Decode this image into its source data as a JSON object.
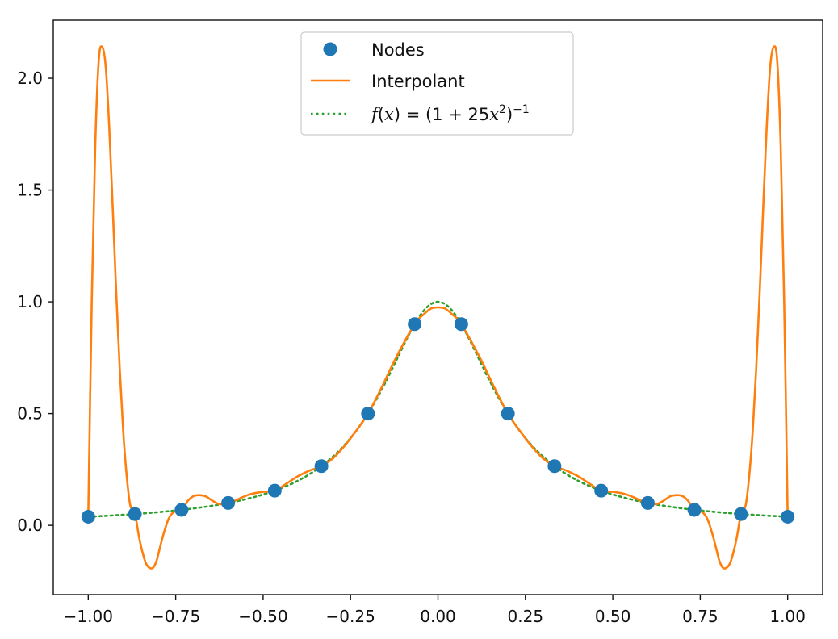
{
  "chart_data": {
    "type": "line",
    "title": "",
    "xlabel": "",
    "ylabel": "",
    "xlim": [
      -1.1,
      1.1
    ],
    "ylim": [
      -0.31,
      2.26
    ],
    "grid": false,
    "legend_position": "top-center",
    "x_ticks": [
      {
        "value": -1.0,
        "label": "−1.00"
      },
      {
        "value": -0.75,
        "label": "−0.75"
      },
      {
        "value": -0.5,
        "label": "−0.50"
      },
      {
        "value": -0.25,
        "label": "−0.25"
      },
      {
        "value": 0.0,
        "label": "0.00"
      },
      {
        "value": 0.25,
        "label": "0.25"
      },
      {
        "value": 0.5,
        "label": "0.50"
      },
      {
        "value": 0.75,
        "label": "0.75"
      },
      {
        "value": 1.0,
        "label": "1.00"
      }
    ],
    "y_ticks": [
      {
        "value": 0.0,
        "label": "0.0"
      },
      {
        "value": 0.5,
        "label": "0.5"
      },
      {
        "value": 1.0,
        "label": "1.0"
      },
      {
        "value": 1.5,
        "label": "1.5"
      },
      {
        "value": 2.0,
        "label": "2.0"
      }
    ],
    "series": [
      {
        "name": "Nodes",
        "kind": "scatter",
        "color": "#1f77b4",
        "x": [
          -1.0,
          -0.8667,
          -0.7333,
          -0.6,
          -0.4667,
          -0.3333,
          -0.2,
          -0.0667,
          0.0667,
          0.2,
          0.3333,
          0.4667,
          0.6,
          0.7333,
          0.8667,
          1.0
        ],
        "y": [
          0.0385,
          0.0506,
          0.0692,
          0.1,
          0.1552,
          0.2647,
          0.5,
          0.9,
          0.9,
          0.5,
          0.2647,
          0.1552,
          0.1,
          0.0692,
          0.0506,
          0.0385
        ]
      },
      {
        "name": "Interpolant",
        "kind": "line",
        "color": "#ff7f0e",
        "x": [
          -1.0,
          -0.99,
          -0.98,
          -0.97,
          -0.96,
          -0.95,
          -0.94,
          -0.93,
          -0.92,
          -0.91,
          -0.9,
          -0.89,
          -0.88,
          -0.8667,
          -0.855,
          -0.845,
          -0.835,
          -0.825,
          -0.815,
          -0.805,
          -0.795,
          -0.785,
          -0.77,
          -0.755,
          -0.7333,
          -0.715,
          -0.7,
          -0.685,
          -0.665,
          -0.645,
          -0.625,
          -0.6,
          -0.58,
          -0.56,
          -0.535,
          -0.5,
          -0.4667,
          -0.43,
          -0.4,
          -0.3667,
          -0.3333,
          -0.3,
          -0.27,
          -0.24,
          -0.2,
          -0.16,
          -0.12,
          -0.0667,
          -0.04,
          -0.02,
          0.0,
          0.02,
          0.04,
          0.0667,
          0.12,
          0.16,
          0.2,
          0.24,
          0.27,
          0.3,
          0.3333,
          0.3667,
          0.4,
          0.43,
          0.4667,
          0.5,
          0.535,
          0.56,
          0.58,
          0.6,
          0.625,
          0.645,
          0.665,
          0.685,
          0.7,
          0.715,
          0.7333,
          0.755,
          0.77,
          0.785,
          0.795,
          0.805,
          0.815,
          0.825,
          0.835,
          0.845,
          0.855,
          0.8667,
          0.88,
          0.89,
          0.9,
          0.91,
          0.92,
          0.93,
          0.94,
          0.95,
          0.96,
          0.97,
          0.98,
          0.99,
          1.0
        ],
        "y": [
          0.0385,
          1.0,
          1.7,
          2.08,
          2.14,
          2.05,
          1.78,
          1.42,
          1.04,
          0.7,
          0.42,
          0.22,
          0.09,
          0.0506,
          -0.05,
          -0.12,
          -0.17,
          -0.19,
          -0.19,
          -0.16,
          -0.1,
          -0.04,
          0.03,
          0.06,
          0.0692,
          0.11,
          0.13,
          0.135,
          0.13,
          0.11,
          0.095,
          0.1,
          0.11,
          0.125,
          0.14,
          0.15,
          0.1552,
          0.19,
          0.22,
          0.245,
          0.2647,
          0.3,
          0.35,
          0.41,
          0.5,
          0.62,
          0.75,
          0.9,
          0.945,
          0.97,
          0.975,
          0.97,
          0.945,
          0.9,
          0.75,
          0.62,
          0.5,
          0.41,
          0.35,
          0.3,
          0.2647,
          0.245,
          0.22,
          0.19,
          0.1552,
          0.15,
          0.14,
          0.125,
          0.11,
          0.1,
          0.095,
          0.11,
          0.13,
          0.135,
          0.13,
          0.11,
          0.0692,
          0.06,
          0.03,
          -0.04,
          -0.1,
          -0.16,
          -0.19,
          -0.19,
          -0.17,
          -0.12,
          -0.05,
          0.0506,
          0.09,
          0.22,
          0.42,
          0.7,
          1.04,
          1.42,
          1.78,
          2.05,
          2.14,
          2.08,
          1.7,
          1.0,
          0.0385
        ]
      },
      {
        "name": "f(x) = (1 + 25x²)⁻¹",
        "kind": "dotted-line",
        "color": "#2ca02c",
        "function": "1/(1+25x^2)",
        "x_range": [
          -1.0,
          1.0
        ]
      }
    ],
    "legend": {
      "entries": [
        {
          "label": "Nodes"
        },
        {
          "label": "Interpolant"
        },
        {
          "label_parts": [
            "f",
            "(",
            "x",
            ") = (1 + 25",
            "x",
            "2",
            ")",
            "−1"
          ]
        }
      ]
    }
  }
}
